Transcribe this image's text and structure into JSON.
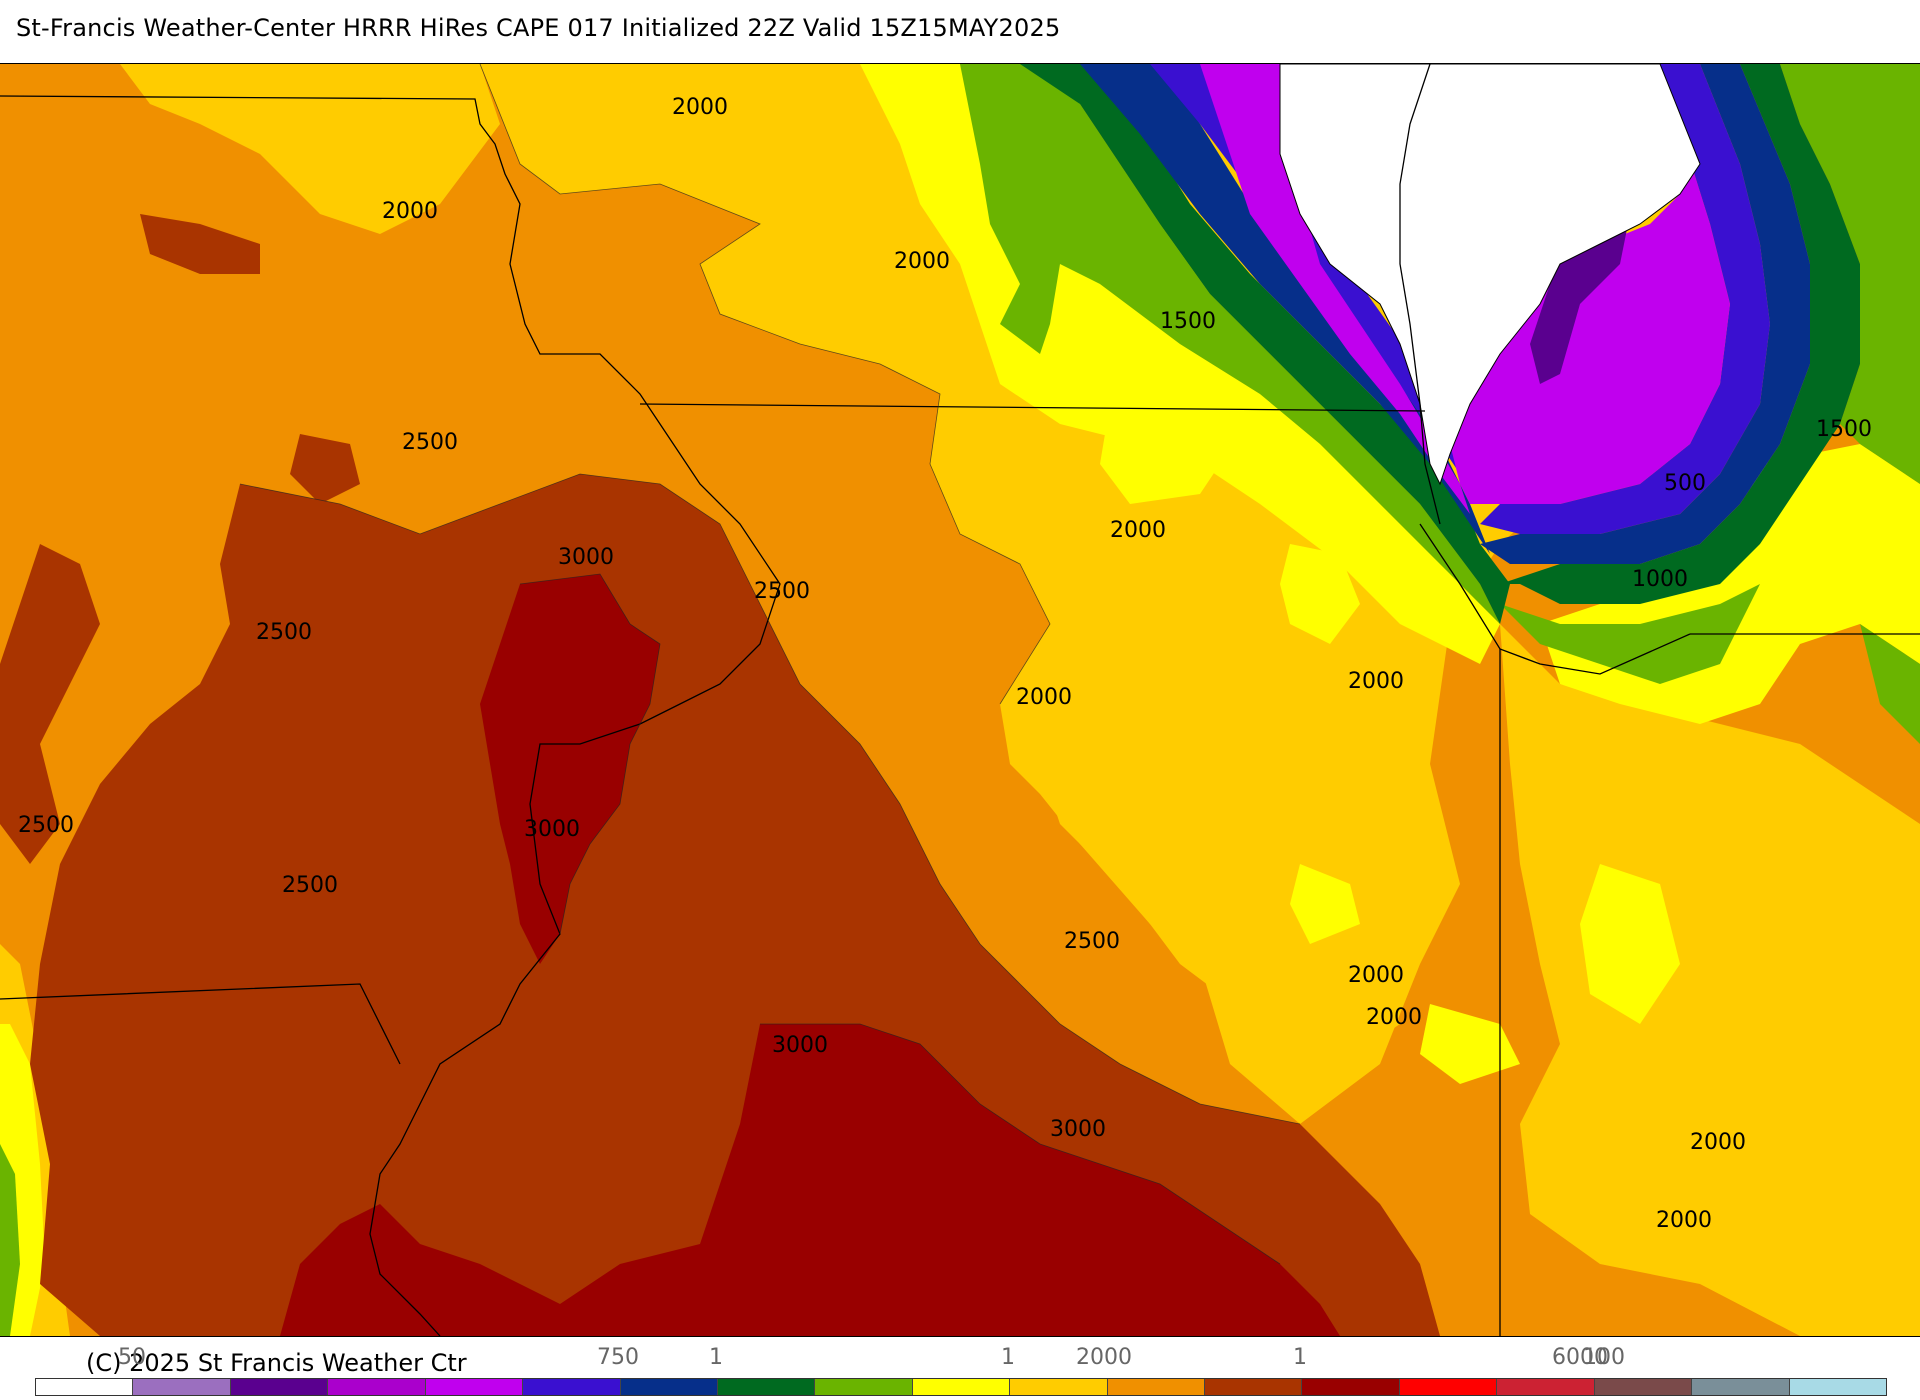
{
  "header": {
    "title": "St-Francis Weather-Center HRRR HiRes CAPE  017 Initialized  22Z Valid 15Z15MAY2025"
  },
  "map": {
    "contour_labels": [
      "2000",
      "2000",
      "2000",
      "1500",
      "2500",
      "3000",
      "2500",
      "2500",
      "2000",
      "3000",
      "2500",
      "2500",
      "2000",
      "2000",
      "500",
      "1000",
      "1500",
      "2500",
      "3000",
      "3000",
      "2000",
      "2000",
      "2000",
      "2000"
    ]
  },
  "legend": {
    "copyright": "(C) 2025 St Francis Weather Ctr",
    "tick_labels": [
      "50",
      "750",
      "1",
      "1",
      "2000",
      "1",
      "6000",
      "100"
    ],
    "colors": [
      "#ffffff",
      "#9b6fbf",
      "#5a008f",
      "#aa00cc",
      "#c000ee",
      "#3a10d0",
      "#062f8a",
      "#006a20",
      "#6ab400",
      "#ffff00",
      "#ffcc00",
      "#f09000",
      "#a93400",
      "#990000",
      "#ff0000",
      "#cc2233",
      "#7a4a4a",
      "#7a8f99",
      "#a8dae6"
    ]
  }
}
